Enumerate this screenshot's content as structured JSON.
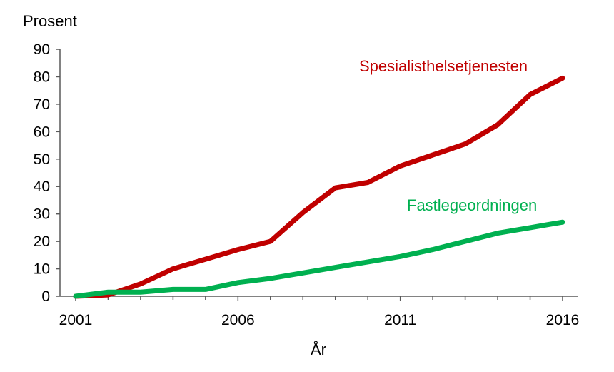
{
  "chart_data": {
    "type": "line",
    "ylabel": "Prosent",
    "xlabel": "År",
    "ylim": [
      0,
      90
    ],
    "y_ticks": [
      "0",
      "10",
      "20",
      "30",
      "40",
      "50",
      "60",
      "70",
      "80",
      "90"
    ],
    "xlim": [
      2001,
      2016
    ],
    "x_ticks": [
      "2001",
      "2006",
      "2011",
      "2016"
    ],
    "x_tick_values": [
      2001,
      2006,
      2011,
      2016
    ],
    "grid": false,
    "legend": "none",
    "x": [
      2001,
      2002,
      2003,
      2004,
      2005,
      2006,
      2007,
      2008,
      2009,
      2010,
      2011,
      2012,
      2013,
      2014,
      2015,
      2016
    ],
    "series": [
      {
        "name": "Spesialisthelsetjenesten",
        "color": "#c00000",
        "values": [
          0,
          0.5,
          4.5,
          10,
          13.5,
          17,
          20,
          30.5,
          39.5,
          41.5,
          47.5,
          51.5,
          55.5,
          62.5,
          73.5,
          79.5
        ]
      },
      {
        "name": "Fastlegeordningen",
        "color": "#00b050",
        "values": [
          0,
          1.5,
          1.5,
          2.5,
          2.5,
          5,
          6.5,
          8.5,
          10.5,
          12.5,
          14.5,
          17,
          20,
          23,
          25,
          27
        ]
      }
    ]
  }
}
